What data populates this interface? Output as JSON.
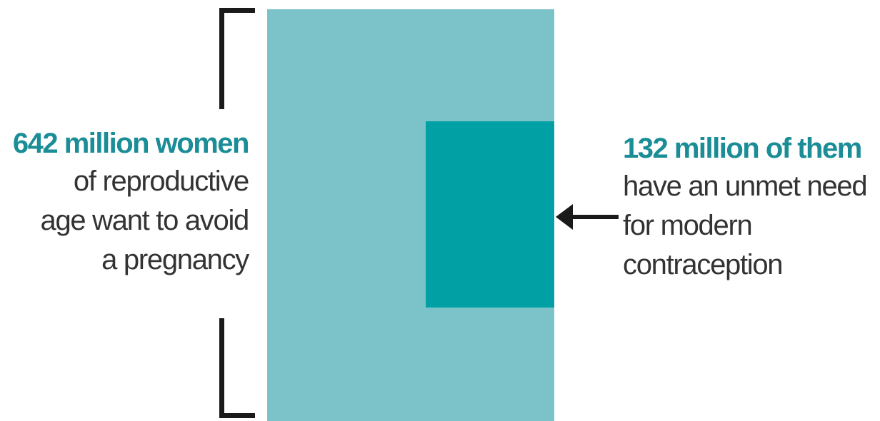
{
  "left_label": {
    "highlight": "642 million women",
    "lines": [
      "of reproductive",
      "age want to avoid",
      "a pregnancy"
    ]
  },
  "right_label": {
    "highlight": "132 million of them",
    "lines": [
      "have an unmet need",
      "for modern",
      "contraception"
    ]
  },
  "colors": {
    "outer_box": "#7cc3c9",
    "inner_box": "#00a0a5",
    "highlight_text": "#1a8d96",
    "body_text": "#333333",
    "bracket_and_arrow": "#1a1a1a"
  },
  "values": {
    "total_million": 642,
    "subset_million": 132
  }
}
